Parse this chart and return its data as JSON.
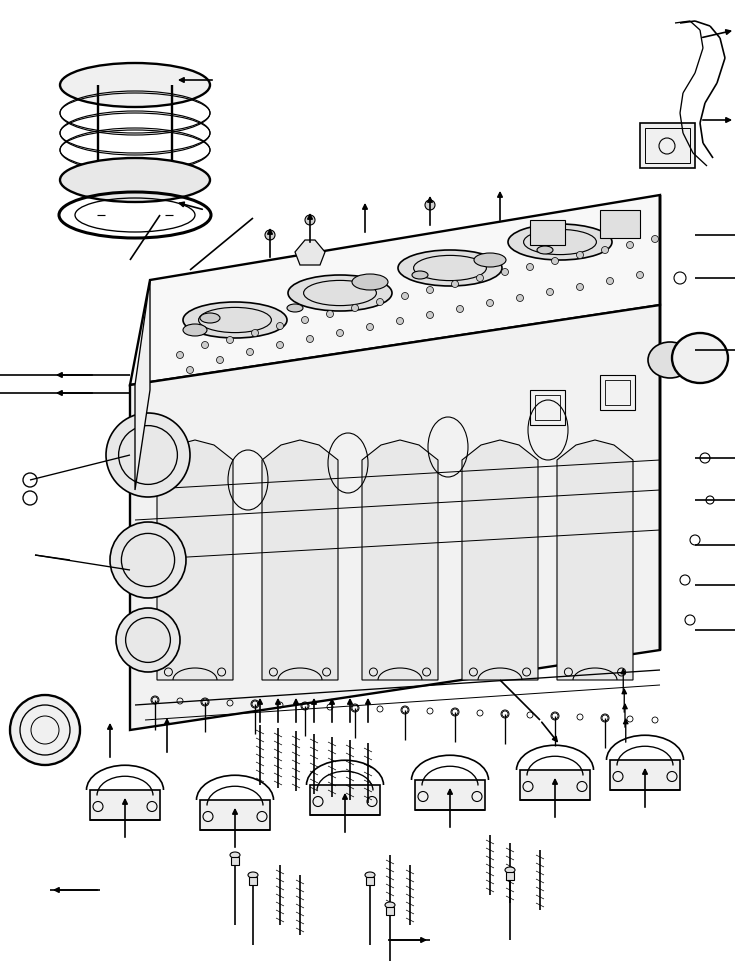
{
  "background_color": "#ffffff",
  "line_color": "#000000",
  "fig_width": 7.41,
  "fig_height": 9.61,
  "dpi": 100,
  "lw": 1.2
}
